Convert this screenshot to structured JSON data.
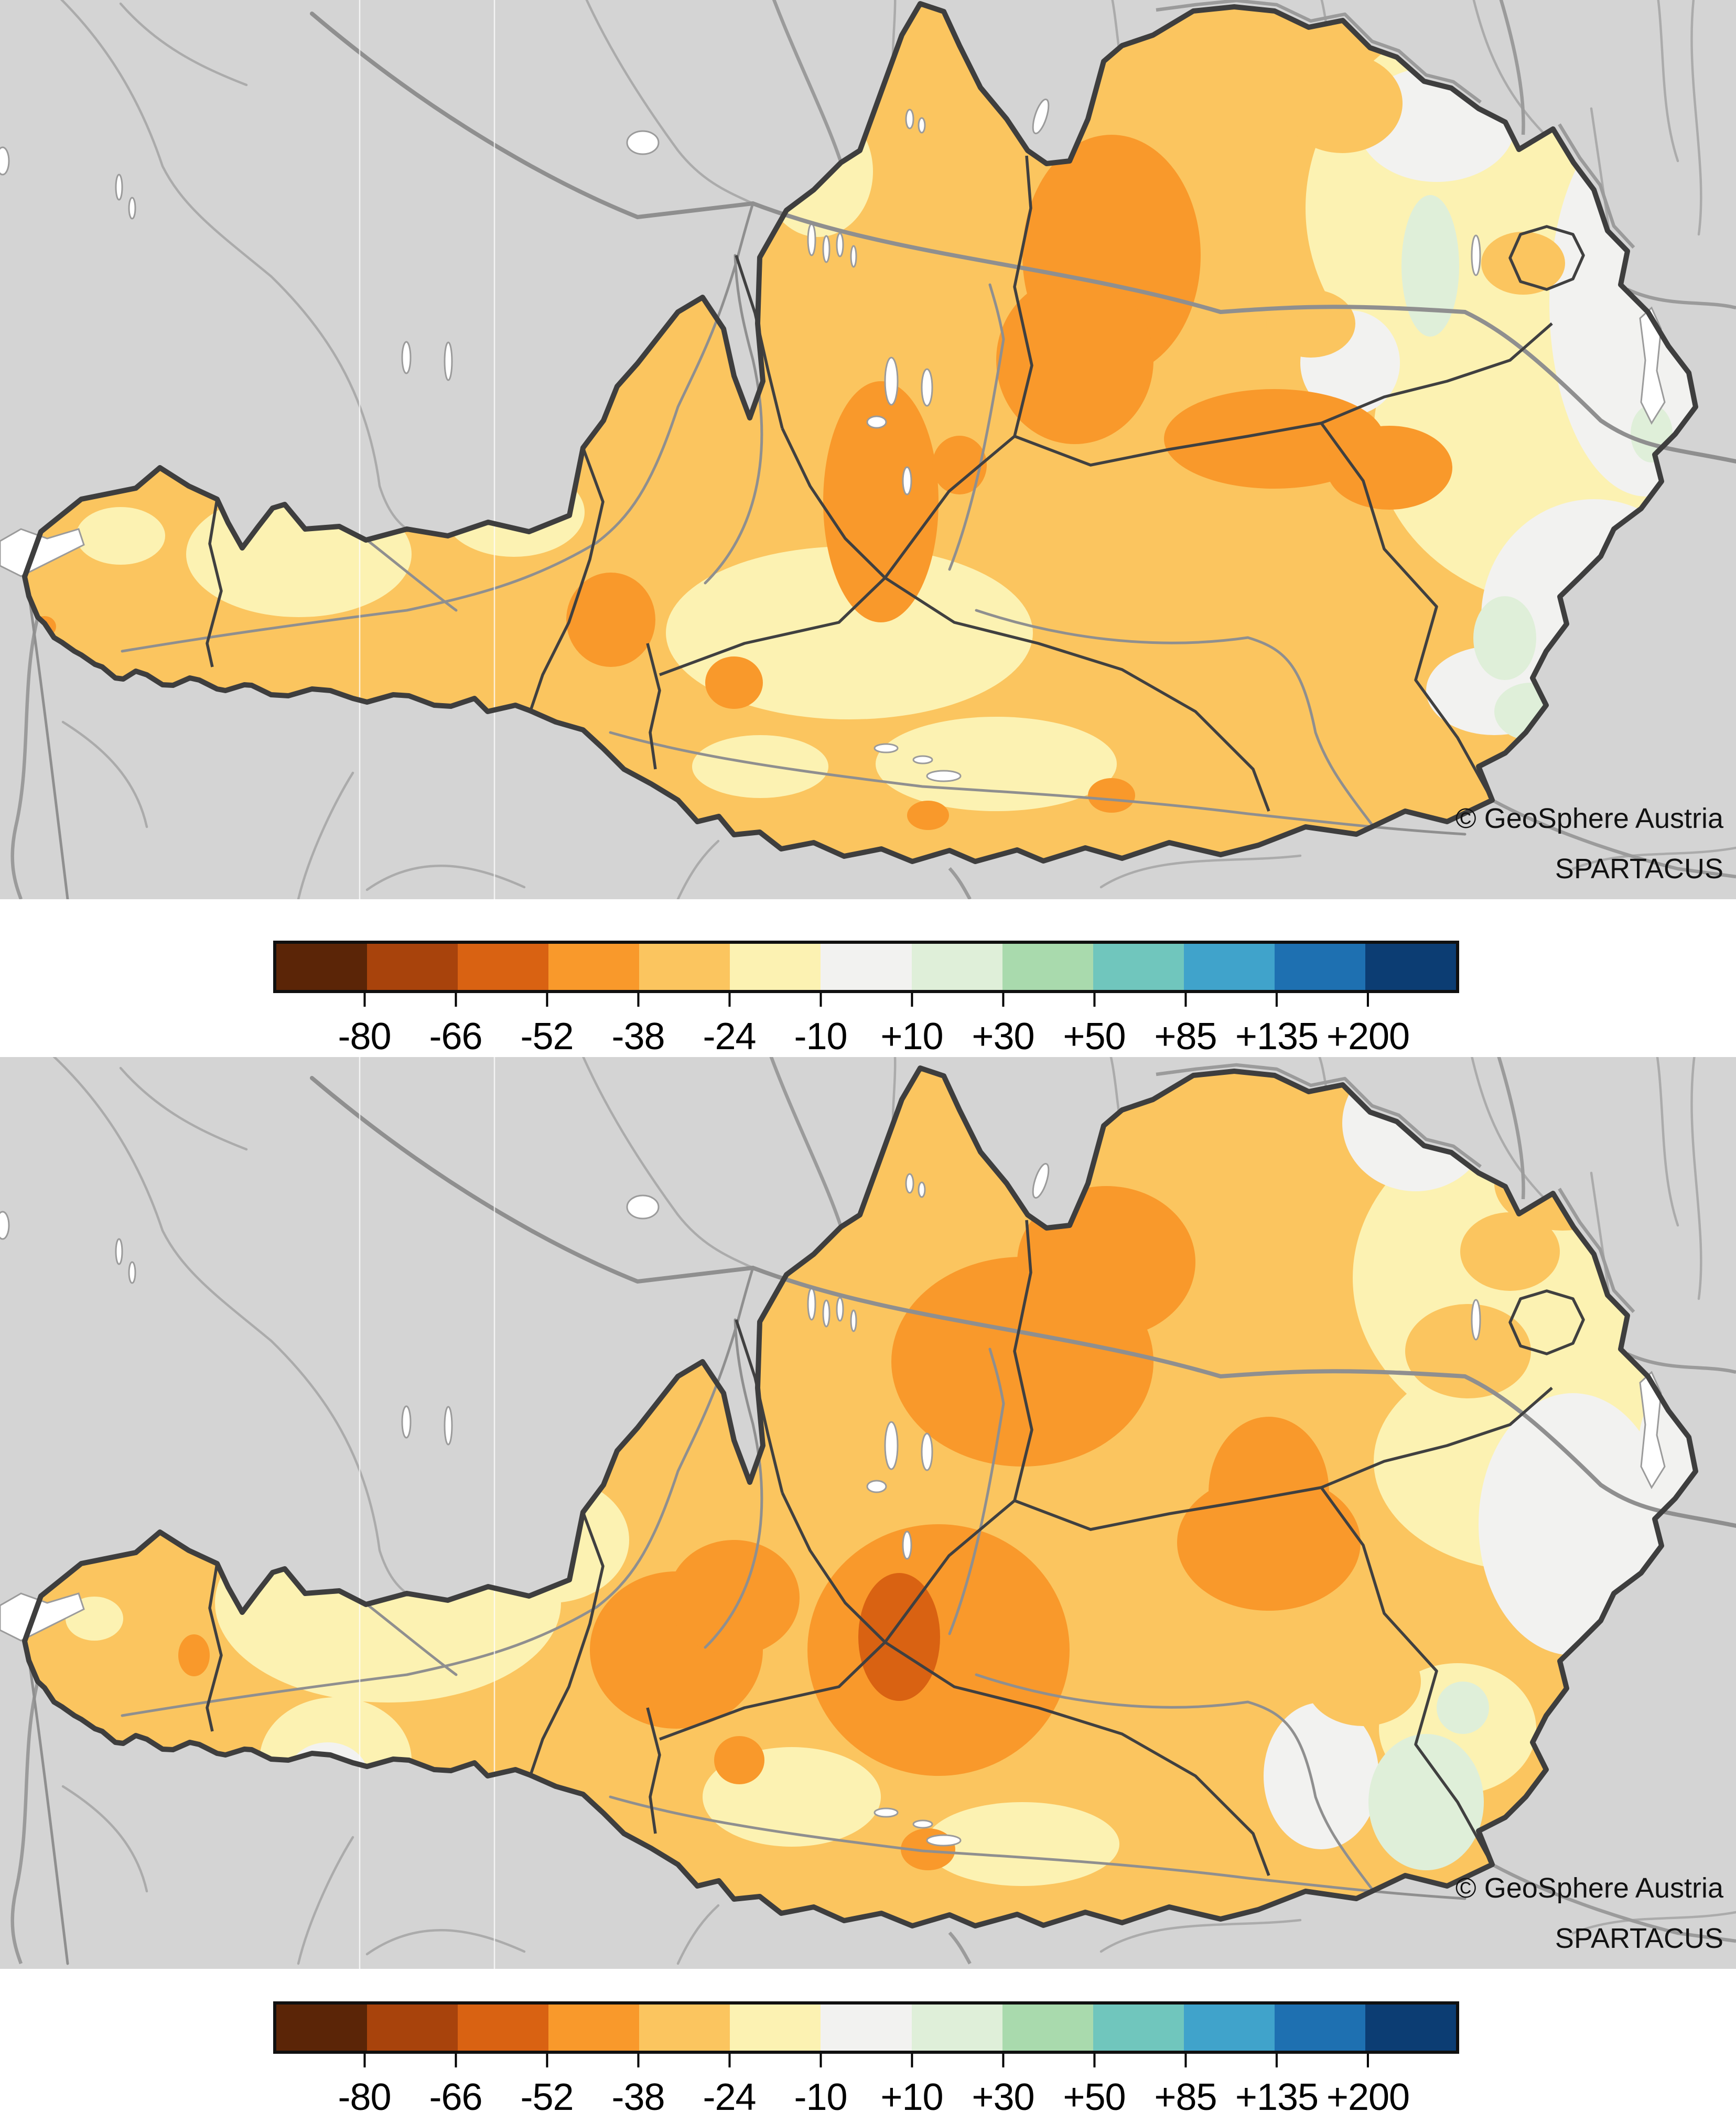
{
  "attribution": {
    "line1": "© GeoSphere Austria",
    "line2": "SPARTACUS"
  },
  "legend": {
    "ticks": [
      "-80",
      "-66",
      "-52",
      "-38",
      "-24",
      "-10",
      "+10",
      "+30",
      "+50",
      "+85",
      "+135",
      "+200"
    ],
    "colors": [
      "#5B2507",
      "#A8430C",
      "#D96212",
      "#F9992B",
      "#FBC55F",
      "#FCF2B2",
      "#F2F2F0",
      "#DFEFD9",
      "#A9DAAD",
      "#70C6BD",
      "#40A3CB",
      "#1E70B1",
      "#0C3D73"
    ]
  },
  "maps": [
    {
      "name": "anomaly-map-top"
    },
    {
      "name": "anomaly-map-bottom"
    }
  ],
  "map_style": {
    "page_background": "#FFFFFF",
    "background_outside": "#D4D4D4",
    "country_border": "#3E3E3E",
    "province_border": "#404040",
    "neighbor_border": "#9B9B9B",
    "river": "#8F8F8F",
    "lake_fill": "#FFFFFF"
  }
}
